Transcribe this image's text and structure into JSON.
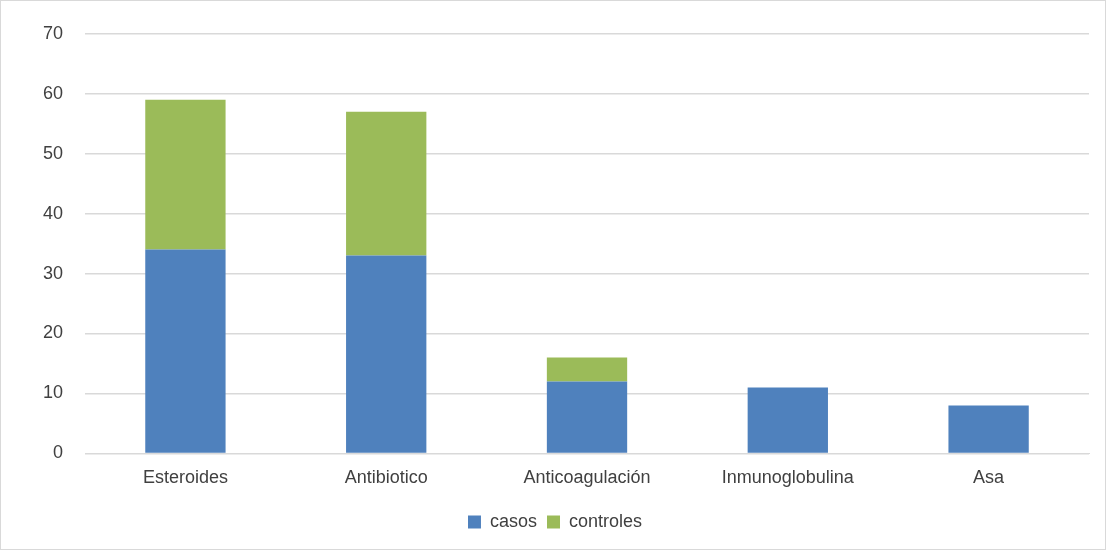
{
  "chart_data": {
    "type": "bar",
    "stacked": true,
    "categories": [
      "Esteroides",
      "Antibiotico",
      "Anticoagulación",
      "Inmunoglobulina",
      "Asa"
    ],
    "series": [
      {
        "name": "casos",
        "color": "#4f81bd",
        "values": [
          34,
          33,
          12,
          11,
          8
        ]
      },
      {
        "name": "controles",
        "color": "#9bbb59",
        "values": [
          25,
          24,
          4,
          0,
          0
        ]
      }
    ],
    "ylim": [
      0,
      70
    ],
    "yticks": [
      0,
      10,
      20,
      30,
      40,
      50,
      60,
      70
    ],
    "grid": "y",
    "legend": "bottom"
  }
}
